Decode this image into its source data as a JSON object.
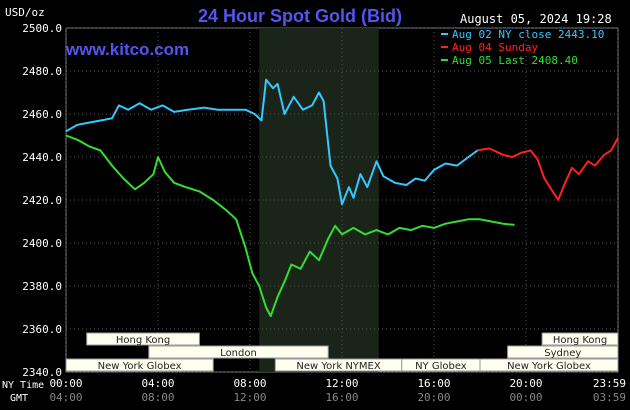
{
  "chart_data": {
    "type": "line",
    "title": "24 Hour Spot Gold (Bid)",
    "watermark": "www.kitco.com",
    "datetime": "August 05, 2024 19:28",
    "y_unit_label": "USD/oz",
    "ylim": [
      2340,
      2500
    ],
    "y_ticks": [
      "2500.0",
      "2480.0",
      "2460.0",
      "2440.0",
      "2420.0",
      "2400.0",
      "2380.0",
      "2360.0",
      "2340.0"
    ],
    "y_tick_values": [
      2500,
      2480,
      2460,
      2440,
      2420,
      2400,
      2380,
      2360,
      2340
    ],
    "x_range_hours": [
      0,
      24
    ],
    "x_tick_hours": [
      0,
      4,
      8,
      12,
      16,
      20,
      24
    ],
    "x_row_labels": {
      "ny": "NY Time",
      "gmt": "GMT"
    },
    "x_ticks_ny": [
      "00:00",
      "04:00",
      "08:00",
      "12:00",
      "16:00",
      "20:00",
      "23:59"
    ],
    "x_ticks_gmt": [
      "04:00",
      "08:00",
      "12:00",
      "16:00",
      "20:00",
      "00:00",
      "03:59"
    ],
    "shaded_hours": [
      8.4,
      13.6
    ],
    "legend": [
      {
        "label": "Aug 02 NY close 2443.10",
        "color": "#33c8ff"
      },
      {
        "label": "Aug 04 Sunday",
        "color": "#ff2020"
      },
      {
        "label": "Aug 05 Last 2408.40",
        "color": "#33dd33"
      }
    ],
    "sessions": [
      {
        "label": "Hong Kong",
        "row": 0,
        "start": 0.9,
        "end": 5.8
      },
      {
        "label": "London",
        "row": 1,
        "start": 3.6,
        "end": 11.4
      },
      {
        "label": "New York Globex",
        "row": 2,
        "start": 0,
        "end": 6.4
      },
      {
        "label": "New York NYMEX",
        "row": 2,
        "start": 9.1,
        "end": 14.6
      },
      {
        "label": "NY Globex",
        "row": 2,
        "start": 14.6,
        "end": 18.0
      },
      {
        "label": "Hong Kong",
        "row": 0,
        "start": 20.7,
        "end": 24
      },
      {
        "label": "Sydney",
        "row": 1,
        "start": 19.2,
        "end": 24
      },
      {
        "label": "New York Globex",
        "row": 2,
        "start": 18.0,
        "end": 24
      }
    ],
    "series": [
      {
        "name": "Aug 02 NY close 2443.10",
        "color": "#33c8ff",
        "points": [
          [
            0,
            2452
          ],
          [
            0.5,
            2455
          ],
          [
            1.0,
            2456
          ],
          [
            1.5,
            2457
          ],
          [
            2.0,
            2458
          ],
          [
            2.3,
            2464
          ],
          [
            2.7,
            2462
          ],
          [
            3.2,
            2465
          ],
          [
            3.7,
            2462
          ],
          [
            4.2,
            2464
          ],
          [
            4.7,
            2461
          ],
          [
            5.3,
            2462
          ],
          [
            6.0,
            2463
          ],
          [
            6.6,
            2462
          ],
          [
            7.2,
            2462
          ],
          [
            7.8,
            2462
          ],
          [
            8.2,
            2460
          ],
          [
            8.5,
            2457
          ],
          [
            8.7,
            2476
          ],
          [
            9.0,
            2472
          ],
          [
            9.2,
            2474
          ],
          [
            9.5,
            2460
          ],
          [
            9.9,
            2468
          ],
          [
            10.3,
            2462
          ],
          [
            10.7,
            2464
          ],
          [
            11.0,
            2470
          ],
          [
            11.2,
            2466
          ],
          [
            11.5,
            2436
          ],
          [
            11.8,
            2430
          ],
          [
            12.0,
            2418
          ],
          [
            12.3,
            2426
          ],
          [
            12.5,
            2421
          ],
          [
            12.8,
            2432
          ],
          [
            13.1,
            2426
          ],
          [
            13.5,
            2438
          ],
          [
            13.8,
            2431
          ],
          [
            14.3,
            2428
          ],
          [
            14.8,
            2427
          ],
          [
            15.2,
            2430
          ],
          [
            15.6,
            2429
          ],
          [
            16.0,
            2434
          ],
          [
            16.5,
            2437
          ],
          [
            17.0,
            2436
          ],
          [
            17.5,
            2440
          ],
          [
            17.9,
            2443.1
          ]
        ]
      },
      {
        "name": "Aug 04 Sunday",
        "color": "#ff2020",
        "points": [
          [
            17.9,
            2443.1
          ],
          [
            18.4,
            2444
          ],
          [
            19.0,
            2441
          ],
          [
            19.4,
            2440
          ],
          [
            19.8,
            2442
          ],
          [
            20.2,
            2443
          ],
          [
            20.5,
            2439
          ],
          [
            20.8,
            2430
          ],
          [
            21.1,
            2425
          ],
          [
            21.4,
            2420
          ],
          [
            21.7,
            2428
          ],
          [
            22.0,
            2435
          ],
          [
            22.3,
            2432
          ],
          [
            22.7,
            2438
          ],
          [
            23.0,
            2436
          ],
          [
            23.4,
            2441
          ],
          [
            23.7,
            2443
          ],
          [
            24.0,
            2449
          ]
        ]
      },
      {
        "name": "Aug 05 Last 2408.40",
        "color": "#33dd33",
        "points": [
          [
            0,
            2450
          ],
          [
            0.5,
            2448
          ],
          [
            1.0,
            2445
          ],
          [
            1.5,
            2443
          ],
          [
            2.0,
            2436
          ],
          [
            2.5,
            2430
          ],
          [
            3.0,
            2425
          ],
          [
            3.4,
            2428
          ],
          [
            3.8,
            2432
          ],
          [
            4.0,
            2440
          ],
          [
            4.3,
            2433
          ],
          [
            4.7,
            2428
          ],
          [
            5.2,
            2426
          ],
          [
            5.8,
            2424
          ],
          [
            6.4,
            2420
          ],
          [
            7.0,
            2415
          ],
          [
            7.4,
            2411
          ],
          [
            7.8,
            2398
          ],
          [
            8.1,
            2386
          ],
          [
            8.4,
            2380
          ],
          [
            8.7,
            2370
          ],
          [
            8.9,
            2366
          ],
          [
            9.2,
            2375
          ],
          [
            9.5,
            2382
          ],
          [
            9.8,
            2390
          ],
          [
            10.2,
            2388
          ],
          [
            10.6,
            2396
          ],
          [
            11.0,
            2392
          ],
          [
            11.4,
            2402
          ],
          [
            11.7,
            2408
          ],
          [
            12.0,
            2404
          ],
          [
            12.5,
            2407
          ],
          [
            13.0,
            2404
          ],
          [
            13.5,
            2406
          ],
          [
            14.0,
            2404
          ],
          [
            14.5,
            2407
          ],
          [
            15.0,
            2406
          ],
          [
            15.5,
            2408
          ],
          [
            16.0,
            2407
          ],
          [
            16.5,
            2409
          ],
          [
            17.0,
            2410
          ],
          [
            17.5,
            2411
          ],
          [
            18.0,
            2411
          ],
          [
            18.5,
            2410
          ],
          [
            19.0,
            2409
          ],
          [
            19.5,
            2408.4
          ]
        ]
      }
    ]
  }
}
